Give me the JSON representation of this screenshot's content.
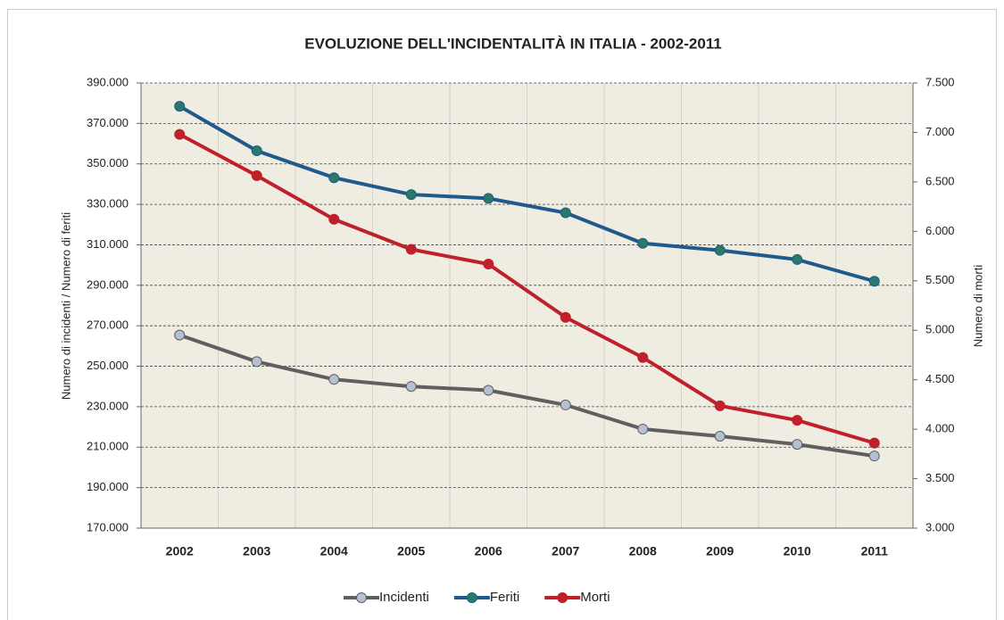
{
  "chart_data": {
    "type": "line",
    "title": "EVOLUZIONE DELL'INCIDENTALITÀ  IN ITALIA - 2002-2011",
    "y_label": "Numero di incidenti / Numero di feriti",
    "y2_label": "Numero di morti",
    "categories": [
      "2002",
      "2003",
      "2004",
      "2005",
      "2006",
      "2007",
      "2008",
      "2009",
      "2010",
      "2011"
    ],
    "series": [
      {
        "name": "Incidenti",
        "color": "#5f5f5f",
        "marker_color": "#b5bfd6",
        "values": [
          265402,
          252271,
          243490,
          240011,
          238124,
          230871,
          218963,
          215405,
          211404,
          205638
        ]
      },
      {
        "name": "Feriti",
        "color": "#1f5a8c",
        "marker_color": "#2a7a6a",
        "values": [
          378492,
          356475,
          343179,
          334858,
          332955,
          325850,
          310745,
          307258,
          302735,
          292019
        ]
      },
      {
        "name": "Morti",
        "color": "#c0202a",
        "marker_color": "#c0202a",
        "axis": "y2",
        "values": [
          6980,
          6563,
          6122,
          5818,
          5669,
          5131,
          4725,
          4237,
          4090,
          3860
        ]
      }
    ],
    "ylim": [
      170000,
      390000
    ],
    "yticks": [
      {
        "value": 170000,
        "label": "170.000"
      },
      {
        "value": 190000,
        "label": "190.000"
      },
      {
        "value": 210000,
        "label": "210.000"
      },
      {
        "value": 230000,
        "label": "230.000"
      },
      {
        "value": 250000,
        "label": "250.000"
      },
      {
        "value": 270000,
        "label": "270.000"
      },
      {
        "value": 290000,
        "label": "290.000"
      },
      {
        "value": 310000,
        "label": "310.000"
      },
      {
        "value": 330000,
        "label": "330.000"
      },
      {
        "value": 350000,
        "label": "350.000"
      },
      {
        "value": 370000,
        "label": "370.000"
      },
      {
        "value": 390000,
        "label": "390.000"
      }
    ],
    "y2lim": [
      3000,
      7500
    ],
    "y2ticks": [
      {
        "value": 3000,
        "label": "3.000"
      },
      {
        "value": 3500,
        "label": "3.500"
      },
      {
        "value": 4000,
        "label": "4.000"
      },
      {
        "value": 4500,
        "label": "4.500"
      },
      {
        "value": 5000,
        "label": "5.000"
      },
      {
        "value": 5500,
        "label": "5.500"
      },
      {
        "value": 6000,
        "label": "6.000"
      },
      {
        "value": 6500,
        "label": "6.500"
      },
      {
        "value": 7000,
        "label": "7.000"
      },
      {
        "value": 7500,
        "label": "7.500"
      }
    ],
    "grid": true,
    "legend": "bottom",
    "plot_background": "#efece1"
  }
}
